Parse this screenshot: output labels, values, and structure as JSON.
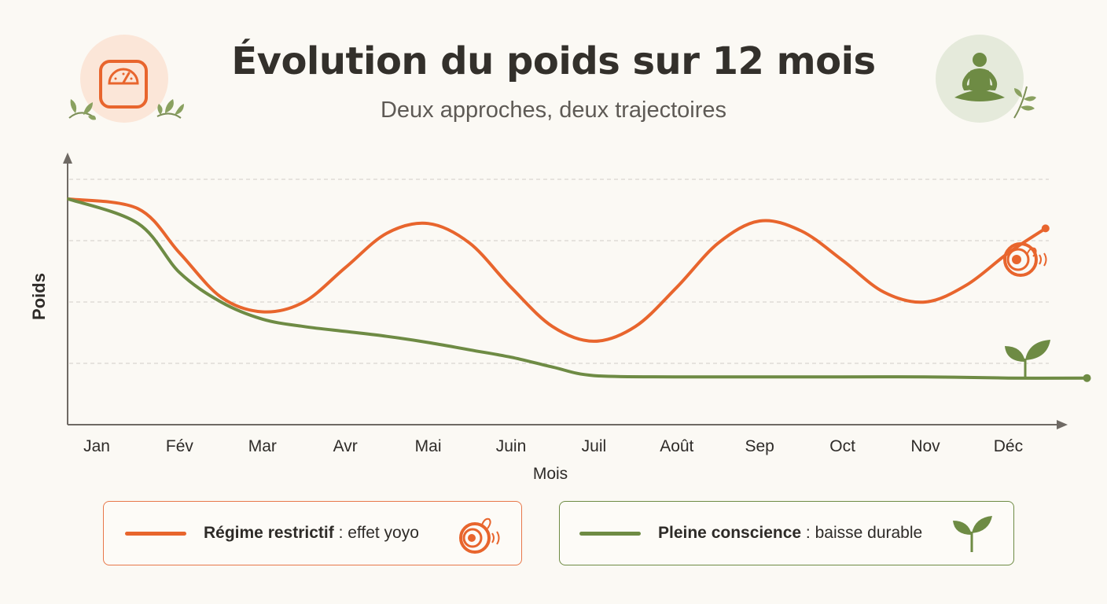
{
  "header": {
    "title": "Évolution du poids sur 12 mois",
    "subtitle": "Deux approches, deux trajectoires",
    "left_icon": "scale-icon",
    "right_icon": "meditation-icon"
  },
  "legend": {
    "items": [
      {
        "name": "Régime restrictif",
        "description": " : effet yoyo",
        "color": "#e8652d",
        "icon": "yoyo-icon"
      },
      {
        "name": "Pleine conscience",
        "description": " : baisse durable",
        "color": "#6e8b44",
        "icon": "sprout-icon"
      }
    ]
  },
  "chart_data": {
    "type": "line",
    "title": "Évolution du poids sur 12 mois",
    "subtitle": "Deux approches, deux trajectoires",
    "xlabel": "Mois",
    "ylabel": "Poids",
    "categories": [
      "Jan",
      "Fév",
      "Mar",
      "Avr",
      "Mai",
      "Juin",
      "Juil",
      "Août",
      "Sep",
      "Oct",
      "Nov",
      "Déc"
    ],
    "ylim": [
      0,
      100
    ],
    "grid": true,
    "series": [
      {
        "name": "Régime restrictif",
        "color": "#e8652d",
        "end_icon": "yoyo-icon",
        "x": [
          0,
          0.5,
          1,
          1.5,
          2,
          2.5,
          3,
          3.5,
          4,
          4.5,
          5,
          5.5,
          6,
          6.5,
          7,
          7.5,
          8,
          8.5,
          9,
          9.5,
          10,
          10.5,
          11,
          11.45
        ],
        "values": [
          92,
          88,
          70,
          52,
          46,
          50,
          64,
          78,
          82,
          74,
          56,
          40,
          34,
          40,
          56,
          74,
          83,
          79,
          67,
          54,
          50,
          57,
          70,
          80
        ]
      },
      {
        "name": "Pleine conscience",
        "color": "#6e8b44",
        "end_icon": "sprout-icon",
        "x": [
          0,
          0.5,
          1,
          1.5,
          2,
          2.5,
          3,
          3.5,
          4,
          4.5,
          5,
          5.5,
          6,
          7,
          8,
          9,
          10,
          11,
          11.95
        ],
        "values": [
          92,
          82,
          62,
          50,
          43,
          40,
          38,
          36,
          33.5,
          30.5,
          27.5,
          23.5,
          20,
          19.5,
          19.5,
          19.5,
          19.5,
          19,
          19
        ]
      }
    ]
  }
}
